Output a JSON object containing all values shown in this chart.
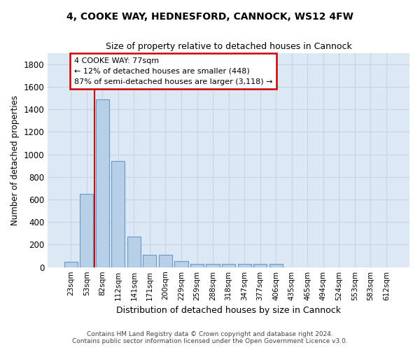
{
  "title_line1": "4, COOKE WAY, HEDNESFORD, CANNOCK, WS12 4FW",
  "title_line2": "Size of property relative to detached houses in Cannock",
  "xlabel": "Distribution of detached houses by size in Cannock",
  "ylabel": "Number of detached properties",
  "categories": [
    "23sqm",
    "53sqm",
    "82sqm",
    "112sqm",
    "141sqm",
    "171sqm",
    "200sqm",
    "229sqm",
    "259sqm",
    "288sqm",
    "318sqm",
    "347sqm",
    "377sqm",
    "406sqm",
    "435sqm",
    "465sqm",
    "494sqm",
    "524sqm",
    "553sqm",
    "583sqm",
    "612sqm"
  ],
  "values": [
    50,
    650,
    1490,
    940,
    270,
    110,
    110,
    55,
    30,
    30,
    30,
    30,
    30,
    30,
    0,
    0,
    0,
    0,
    0,
    0,
    0
  ],
  "bar_color": "#b8cfe8",
  "bar_edge_color": "#6699cc",
  "grid_color": "#c8d4e4",
  "background_color": "#dce8f4",
  "annotation_text": "4 COOKE WAY: 77sqm\n← 12% of detached houses are smaller (448)\n87% of semi-detached houses are larger (3,118) →",
  "annotation_box_color": "#ffffff",
  "annotation_box_edge": "#cc0000",
  "marker_line_color": "#cc0000",
  "ylim": [
    0,
    1900
  ],
  "yticks": [
    0,
    200,
    400,
    600,
    800,
    1000,
    1200,
    1400,
    1600,
    1800
  ],
  "footer_line1": "Contains HM Land Registry data © Crown copyright and database right 2024.",
  "footer_line2": "Contains public sector information licensed under the Open Government Licence v3.0."
}
